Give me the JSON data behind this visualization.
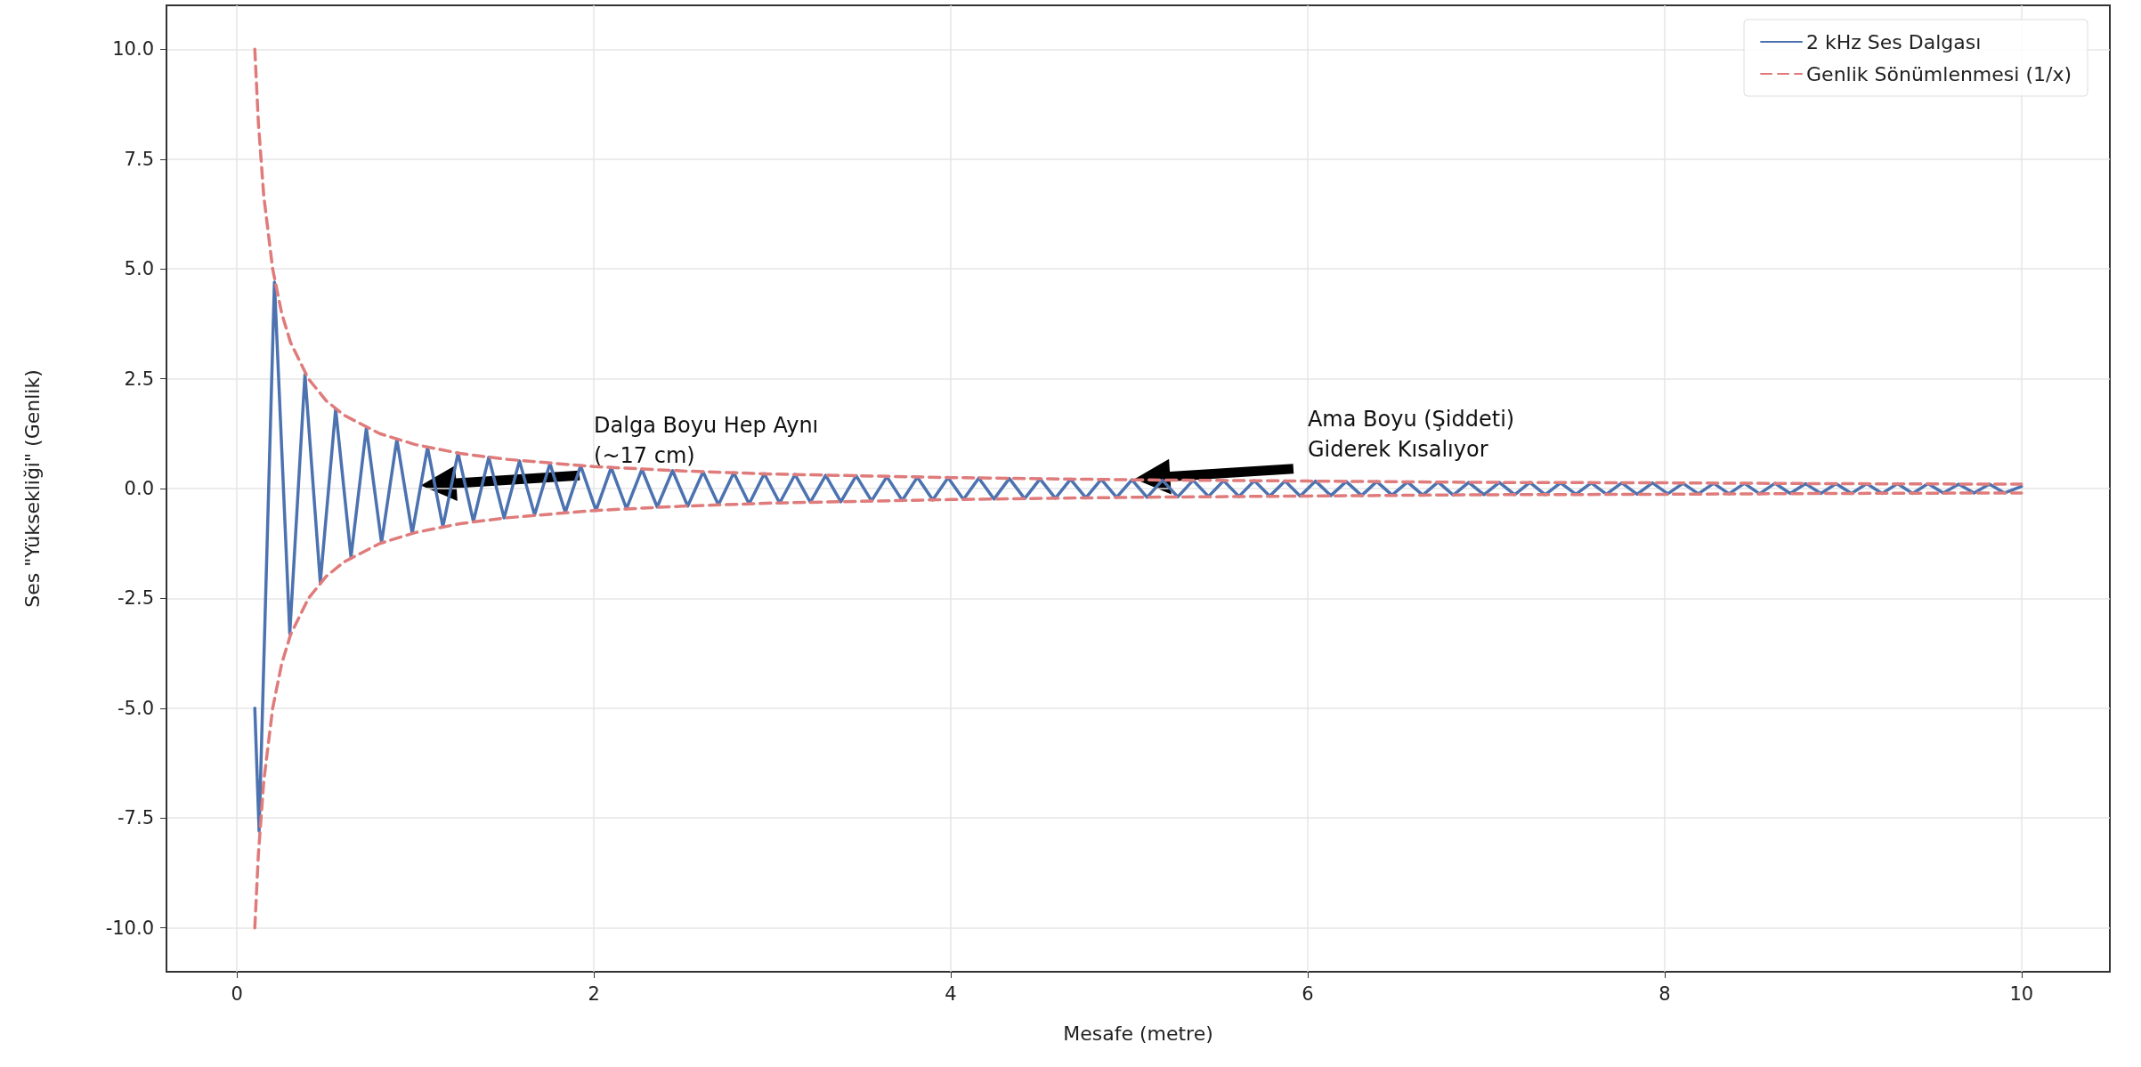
{
  "chart_data": {
    "type": "line",
    "xlabel": "Mesafe (metre)",
    "ylabel": "Ses \"Yüksekliği\" (Genlik)",
    "xlim": [
      -0.395,
      10.495
    ],
    "xticks": [
      0,
      2,
      4,
      6,
      8,
      10
    ],
    "ylim": [
      -11,
      11
    ],
    "yticks": [
      {
        "value": -10,
        "label": "-10.0"
      },
      {
        "value": -7.5,
        "label": "-7.5"
      },
      {
        "value": -5,
        "label": "-5.0"
      },
      {
        "value": -2.5,
        "label": "-2.5"
      },
      {
        "value": 0,
        "label": "0.0"
      },
      {
        "value": 2.5,
        "label": "2.5"
      },
      {
        "value": 5,
        "label": "5.0"
      },
      {
        "value": 7.5,
        "label": "7.5"
      },
      {
        "value": 10,
        "label": "10.0"
      }
    ],
    "grid": true,
    "legend": "top right",
    "marker": "none",
    "annotations": [
      "Dalga Boyu Hep Aynı\n(~17 cm)",
      "Ama Boyu (Şiddeti)\nGiderek Kısalıyor"
    ],
    "series": [
      {
        "name": "2 kHz Ses Dalgası",
        "color": "#4c72b0",
        "line_style": "solid",
        "x": [
          0.1,
          0.124,
          0.21,
          0.296,
          0.381,
          0.467,
          0.553,
          0.639,
          0.725,
          0.81,
          0.896,
          0.982,
          1.068,
          1.154,
          1.239,
          1.325,
          1.411,
          1.497,
          1.583,
          1.668,
          1.754,
          1.84,
          1.926,
          2.012,
          2.097,
          2.183,
          2.269,
          2.355,
          2.441,
          2.526,
          2.612,
          2.698,
          2.784,
          2.87,
          2.955,
          3.041,
          3.127,
          3.213,
          3.299,
          3.384,
          3.47,
          3.556,
          3.642,
          3.728,
          3.813,
          3.899,
          3.985,
          4.071,
          4.157,
          4.242,
          4.328,
          4.414,
          4.5,
          4.586,
          4.671,
          4.757,
          4.843,
          4.929,
          5.015,
          5.1,
          5.186,
          5.272,
          5.358,
          5.444,
          5.529,
          5.615,
          5.701,
          5.787,
          5.873,
          5.958,
          6.044,
          6.13,
          6.216,
          6.302,
          6.387,
          6.473,
          6.559,
          6.645,
          6.731,
          6.816,
          6.902,
          6.988,
          7.074,
          7.16,
          7.245,
          7.331,
          7.417,
          7.503,
          7.589,
          7.674,
          7.76,
          7.846,
          7.932,
          8.018,
          8.103,
          8.189,
          8.275,
          8.361,
          8.447,
          8.532,
          8.618,
          8.704,
          8.79,
          8.876,
          8.961,
          9.047,
          9.133,
          9.219,
          9.305,
          9.39,
          9.476,
          9.562,
          9.648,
          9.734,
          9.82,
          9.905,
          10.0
        ],
        "values": [
          -5.0,
          -7.8,
          4.7,
          -3.3,
          2.6,
          -2.14,
          1.81,
          -1.56,
          1.38,
          -1.23,
          1.12,
          -1.02,
          0.94,
          -0.87,
          0.81,
          -0.75,
          0.71,
          -0.67,
          0.63,
          -0.6,
          0.57,
          -0.54,
          0.52,
          -0.5,
          0.48,
          -0.46,
          0.44,
          -0.42,
          0.41,
          -0.4,
          0.38,
          -0.37,
          0.36,
          -0.35,
          0.34,
          -0.33,
          0.32,
          -0.31,
          0.3,
          -0.3,
          0.29,
          -0.28,
          0.27,
          -0.27,
          0.26,
          -0.26,
          0.25,
          -0.25,
          0.24,
          -0.24,
          0.23,
          -0.23,
          0.22,
          -0.22,
          0.21,
          -0.21,
          0.21,
          -0.2,
          0.2,
          -0.2,
          0.19,
          -0.19,
          0.19,
          -0.18,
          0.18,
          -0.18,
          0.18,
          -0.17,
          0.17,
          -0.17,
          0.17,
          -0.16,
          0.16,
          -0.16,
          0.16,
          -0.15,
          0.15,
          -0.15,
          0.15,
          -0.15,
          0.14,
          -0.14,
          0.14,
          -0.14,
          0.14,
          -0.14,
          0.13,
          -0.13,
          0.13,
          -0.13,
          0.13,
          -0.13,
          0.13,
          -0.12,
          0.12,
          -0.12,
          0.12,
          -0.12,
          0.12,
          -0.12,
          0.12,
          -0.11,
          0.11,
          -0.11,
          0.11,
          -0.11,
          0.11,
          -0.11,
          0.11,
          -0.11,
          0.11,
          -0.1,
          0.1,
          -0.1,
          0.1,
          -0.1,
          0.05
        ]
      },
      {
        "name": "Genlik Sönümlenmesi (1/x)",
        "color": "#e07b7b",
        "line_style": "dashed",
        "x": [
          0.1,
          0.12,
          0.15,
          0.2,
          0.25,
          0.3,
          0.4,
          0.5,
          0.6,
          0.8,
          1,
          1.25,
          1.5,
          2,
          2.5,
          3,
          4,
          5,
          6,
          7,
          8,
          9,
          10
        ],
        "values": [
          10,
          8.33,
          6.67,
          5,
          4,
          3.33,
          2.5,
          2,
          1.67,
          1.25,
          1,
          0.8,
          0.67,
          0.5,
          0.4,
          0.33,
          0.25,
          0.2,
          0.17,
          0.14,
          0.13,
          0.11,
          0.1
        ]
      },
      {
        "color": "#e07b7b",
        "line_style": "dashed",
        "x": [
          0.1,
          0.12,
          0.15,
          0.2,
          0.25,
          0.3,
          0.4,
          0.5,
          0.6,
          0.8,
          1,
          1.25,
          1.5,
          2,
          2.5,
          3,
          4,
          5,
          6,
          7,
          8,
          9,
          10
        ],
        "values": [
          -10,
          -8.33,
          -6.67,
          -5,
          -4,
          -3.33,
          -2.5,
          -2,
          -1.67,
          -1.25,
          -1,
          -0.8,
          -0.67,
          -0.5,
          -0.4,
          -0.33,
          -0.25,
          -0.2,
          -0.17,
          -0.14,
          -0.13,
          -0.11,
          -0.1
        ]
      }
    ]
  }
}
